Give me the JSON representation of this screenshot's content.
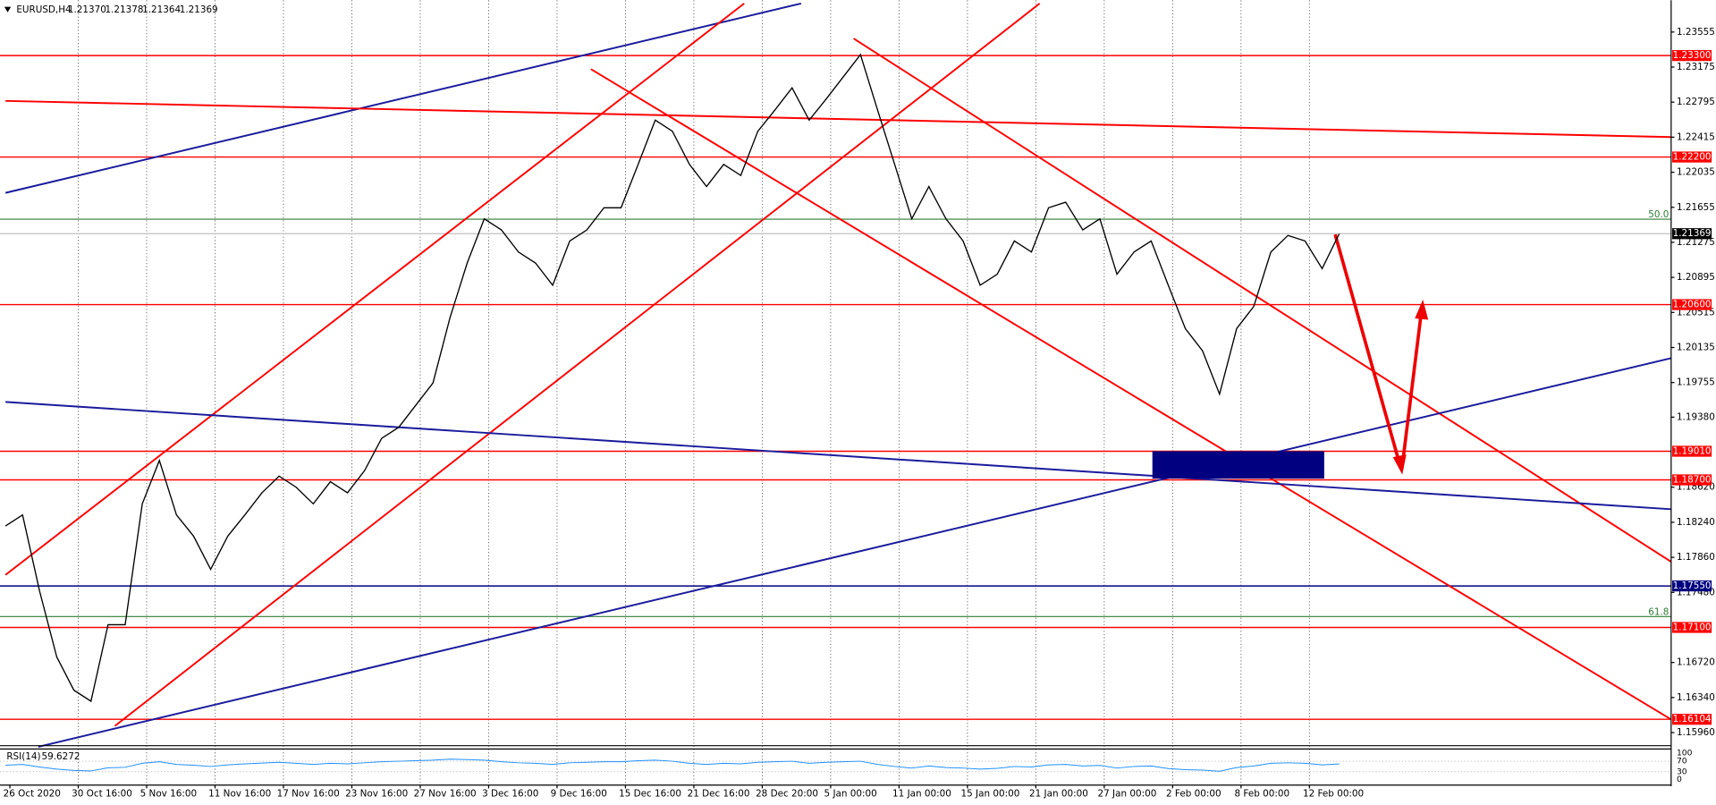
{
  "chart_data": {
    "type": "line",
    "title": "EURUSD,H4",
    "quote": [
      "1.21370",
      "1.21378",
      "1.21364",
      "1.21369"
    ],
    "categories": [
      "26 Oct 2020",
      null,
      null,
      null,
      "30 Oct 16:00",
      null,
      null,
      null,
      "5 Nov 16:00",
      null,
      null,
      null,
      "11 Nov 16:00",
      null,
      null,
      null,
      "17 Nov 16:00",
      null,
      null,
      null,
      "23 Nov 16:00",
      null,
      null,
      null,
      "27 Nov 16:00",
      null,
      null,
      null,
      "3 Dec 16:00",
      null,
      null,
      null,
      "9 Dec 16:00",
      null,
      null,
      null,
      "15 Dec 16:00",
      null,
      null,
      null,
      "21 Dec 16:00",
      null,
      null,
      null,
      "28 Dec 20:00",
      null,
      null,
      null,
      "5 Jan 00:00",
      null,
      null,
      null,
      "11 Jan 00:00",
      null,
      null,
      null,
      "15 Jan 00:00",
      null,
      null,
      null,
      "21 Jan 00:00",
      null,
      null,
      null,
      "27 Jan 00:00",
      null,
      null,
      null,
      "2 Feb 00:00",
      null,
      null,
      null,
      "8 Feb 00:00",
      null,
      null,
      null,
      "12 Feb 00:00",
      null,
      null
    ],
    "series": [
      {
        "name": "EURUSD",
        "color": "#000000",
        "values": [
          1.182,
          1.1832,
          1.1749,
          1.1678,
          1.1642,
          1.163,
          1.1713,
          1.1713,
          1.1844,
          1.1891,
          1.1832,
          1.1809,
          1.1773,
          1.1809,
          1.1832,
          1.1856,
          1.1874,
          1.1862,
          1.1844,
          1.1868,
          1.1856,
          1.188,
          1.1915,
          1.1927,
          1.1951,
          1.1975,
          1.2046,
          1.2105,
          1.2153,
          1.2141,
          1.2117,
          1.2105,
          1.2081,
          1.2129,
          1.2141,
          1.2165,
          1.2165,
          1.2212,
          1.226,
          1.2248,
          1.2212,
          1.2188,
          1.2212,
          1.22,
          1.2248,
          1.2271,
          1.2295,
          1.226,
          1.2283,
          1.2307,
          1.2331,
          1.2271,
          1.2212,
          1.2153,
          1.2188,
          1.2153,
          1.2129,
          1.2081,
          1.2093,
          1.2129,
          1.2117,
          1.2165,
          1.2171,
          1.2141,
          1.2153,
          1.2093,
          1.2117,
          1.2129,
          1.2081,
          1.2034,
          1.201,
          1.1963,
          1.2034,
          1.2058,
          1.2117,
          1.2135,
          1.2129,
          1.2099,
          1.21369
        ]
      }
    ],
    "ylim": [
      1.1583,
      1.239
    ],
    "yticks": [
      1.23555,
      1.23175,
      1.22795,
      1.22415,
      1.22035,
      1.21655,
      1.21275,
      1.20895,
      1.20515,
      1.20135,
      1.19755,
      {
        "value": 1.1938,
        "label": "1.19380"
      },
      {
        "value": 1.1862,
        "label": "1.18620"
      },
      {
        "value": 1.1824,
        "label": "1.18240"
      },
      {
        "value": 1.1786,
        "label": "1.17860"
      },
      {
        "value": 1.1748,
        "label": "1.17480"
      },
      {
        "value": 1.1672,
        "label": "1.16720"
      },
      {
        "value": 1.1634,
        "label": "1.16340"
      },
      {
        "value": 1.1596,
        "label": "1.15960"
      }
    ],
    "grid": true,
    "levels": [
      {
        "value": 1.233,
        "label": "1.23300",
        "color": "#ff0000"
      },
      {
        "value": 1.222,
        "label": "1.22200",
        "color": "#ff0000"
      },
      {
        "value": 1.206,
        "label": "1.20600",
        "color": "#ff0000"
      },
      {
        "value": 1.1901,
        "label": "1.19010",
        "color": "#ff0000"
      },
      {
        "value": 1.187,
        "label": "1.18700",
        "color": "#ff0000"
      },
      {
        "value": 1.1755,
        "label": "1.17550",
        "color": "#000080"
      },
      {
        "value": 1.171,
        "label": "1.17100",
        "color": "#ff0000"
      },
      {
        "value": 1.16104,
        "label": "1.16104",
        "color": "#ff0000"
      }
    ],
    "current": {
      "value": 1.21369,
      "label": "1.21369",
      "color": "#000000"
    },
    "fib": [
      {
        "value": 1.21526,
        "label": "50.0",
        "color": "#2e7d32"
      },
      {
        "value": 1.17218,
        "label": "61.8",
        "color": "#2e7d32"
      }
    ],
    "rsi": {
      "name": "RSI(14)",
      "color": "#1e90ff",
      "ylim": [
        0,
        100
      ],
      "yticks": [
        100,
        70,
        30,
        0
      ],
      "levels": [
        70,
        30
      ],
      "values": [
        55,
        58,
        48,
        40,
        35,
        33,
        45,
        47,
        62,
        68,
        58,
        55,
        50,
        56,
        60,
        63,
        66,
        62,
        58,
        62,
        60,
        64,
        68,
        70,
        72,
        74,
        78,
        76,
        74,
        68,
        64,
        62,
        58,
        64,
        66,
        68,
        68,
        72,
        74,
        70,
        62,
        58,
        62,
        60,
        66,
        68,
        70,
        62,
        66,
        68,
        70,
        58,
        50,
        44,
        52,
        46,
        44,
        40,
        43,
        50,
        48,
        56,
        58,
        52,
        54,
        44,
        50,
        52,
        42,
        38,
        36,
        32,
        46,
        52,
        62,
        64,
        62,
        56,
        59.6272
      ]
    }
  }
}
